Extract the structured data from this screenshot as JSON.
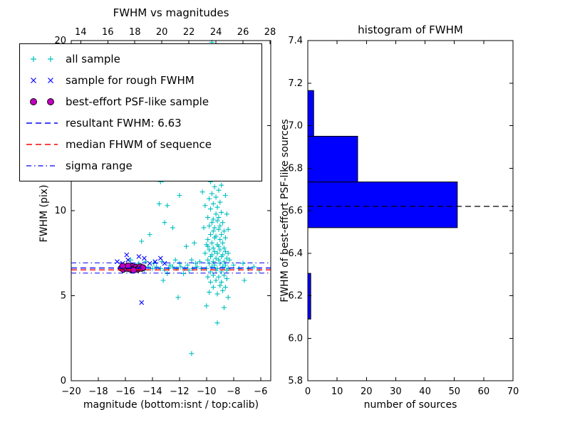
{
  "figure": {
    "background": "#ffffff"
  },
  "chart_data": [
    {
      "type": "scatter",
      "title": "FWHM vs magnitudes",
      "xlabel": "magnitude (bottom:isnt / top:calib)",
      "ylabel": "FWHM (pix)",
      "xlim": [
        -20,
        -5.25
      ],
      "ylim": [
        0,
        20
      ],
      "x_tick_values": [
        -20,
        -18,
        -16,
        -14,
        -12,
        -10,
        -8,
        -6
      ],
      "x_tick_labels": [
        "−20",
        "−18",
        "−16",
        "−14",
        "−12",
        "−10",
        "−8",
        "−6"
      ],
      "top_tick_values": [
        14,
        16,
        18,
        20,
        22,
        24,
        26,
        28
      ],
      "top_tick_labels": [
        "14",
        "16",
        "18",
        "20",
        "22",
        "24",
        "26",
        "28"
      ],
      "y_tick_values": [
        0,
        5,
        10,
        15,
        20
      ],
      "y_tick_labels": [
        "0",
        "5",
        "10",
        "15",
        "20"
      ],
      "series": [
        {
          "name": "all sample",
          "marker": "plus",
          "color": "#00bfbf",
          "points": [
            [
              -9.8,
              5.2
            ],
            [
              -9.2,
              5.1
            ],
            [
              -8.8,
              5.3
            ],
            [
              -9.5,
              5.5
            ],
            [
              -9.0,
              5.6
            ],
            [
              -8.6,
              5.5
            ],
            [
              -9.7,
              5.8
            ],
            [
              -9.3,
              5.9
            ],
            [
              -8.9,
              5.8
            ],
            [
              -8.5,
              6.0
            ],
            [
              -9.9,
              6.1
            ],
            [
              -9.5,
              6.2
            ],
            [
              -9.1,
              6.1
            ],
            [
              -8.7,
              6.2
            ],
            [
              -9.7,
              6.4
            ],
            [
              -9.3,
              6.5
            ],
            [
              -8.9,
              6.4
            ],
            [
              -8.5,
              6.5
            ],
            [
              -10.0,
              6.6
            ],
            [
              -9.6,
              6.7
            ],
            [
              -9.2,
              6.6
            ],
            [
              -8.8,
              6.7
            ],
            [
              -8.4,
              6.6
            ],
            [
              -9.8,
              6.9
            ],
            [
              -9.4,
              6.8
            ],
            [
              -9.0,
              6.9
            ],
            [
              -8.6,
              6.8
            ],
            [
              -9.9,
              7.1
            ],
            [
              -9.5,
              7.0
            ],
            [
              -9.1,
              7.1
            ],
            [
              -8.7,
              7.0
            ],
            [
              -8.3,
              7.1
            ],
            [
              -9.7,
              7.3
            ],
            [
              -9.3,
              7.2
            ],
            [
              -8.9,
              7.3
            ],
            [
              -8.5,
              7.2
            ],
            [
              -10.1,
              7.5
            ],
            [
              -9.6,
              7.4
            ],
            [
              -9.2,
              7.5
            ],
            [
              -8.8,
              7.4
            ],
            [
              -8.4,
              7.5
            ],
            [
              -9.8,
              7.7
            ],
            [
              -9.4,
              7.6
            ],
            [
              -9.0,
              7.7
            ],
            [
              -8.6,
              7.6
            ],
            [
              -9.9,
              7.9
            ],
            [
              -9.5,
              7.8
            ],
            [
              -9.1,
              7.9
            ],
            [
              -8.7,
              7.8
            ],
            [
              -9.6,
              8.1
            ],
            [
              -9.2,
              8.0
            ],
            [
              -8.8,
              8.1
            ],
            [
              -9.9,
              8.3
            ],
            [
              -9.4,
              8.4
            ],
            [
              -9.0,
              8.3
            ],
            [
              -8.6,
              8.4
            ],
            [
              -9.7,
              8.6
            ],
            [
              -9.3,
              8.5
            ],
            [
              -8.9,
              8.6
            ],
            [
              -9.5,
              8.8
            ],
            [
              -9.1,
              8.9
            ],
            [
              -8.7,
              8.8
            ],
            [
              -9.8,
              9.1
            ],
            [
              -9.4,
              9.0
            ],
            [
              -9.0,
              9.1
            ],
            [
              -9.6,
              9.3
            ],
            [
              -9.2,
              9.4
            ],
            [
              -8.8,
              9.3
            ],
            [
              -9.9,
              9.6
            ],
            [
              -9.5,
              9.5
            ],
            [
              -9.1,
              9.6
            ],
            [
              -9.3,
              9.8
            ],
            [
              -8.9,
              9.9
            ],
            [
              -9.7,
              10.1
            ],
            [
              -9.2,
              10.2
            ],
            [
              -9.5,
              10.4
            ],
            [
              -9.0,
              10.5
            ],
            [
              -9.8,
              10.7
            ],
            [
              -9.3,
              10.8
            ],
            [
              -9.6,
              11.0
            ],
            [
              -9.1,
              11.2
            ],
            [
              -9.4,
              11.4
            ],
            [
              -8.9,
              11.5
            ],
            [
              -9.7,
              11.7
            ],
            [
              -9.2,
              11.9
            ],
            [
              -9.5,
              12.1
            ],
            [
              -9.0,
              12.3
            ],
            [
              -9.3,
              12.6
            ],
            [
              -9.6,
              12.9
            ],
            [
              -9.1,
              13.2
            ],
            [
              -9.4,
              13.6
            ],
            [
              -8.8,
              12.0
            ],
            [
              -8.6,
              10.9
            ],
            [
              -8.5,
              9.8
            ],
            [
              -10.2,
              9.0
            ],
            [
              -10.0,
              8.0
            ],
            [
              -10.1,
              10.3
            ],
            [
              -10.3,
              11.1
            ],
            [
              -8.4,
              8.9
            ],
            [
              -10.2,
              12.4
            ],
            [
              -8.7,
              13.0
            ],
            [
              -16.4,
              6.6
            ],
            [
              -16.1,
              6.7
            ],
            [
              -15.8,
              6.5
            ],
            [
              -15.5,
              6.6
            ],
            [
              -15.2,
              6.7
            ],
            [
              -14.9,
              6.6
            ],
            [
              -14.6,
              6.5
            ],
            [
              -14.3,
              6.7
            ],
            [
              -14.0,
              6.6
            ],
            [
              -13.7,
              6.7
            ],
            [
              -13.4,
              6.6
            ],
            [
              -13.1,
              6.5
            ],
            [
              -12.8,
              6.6
            ],
            [
              -12.5,
              6.7
            ],
            [
              -12.2,
              6.6
            ],
            [
              -11.9,
              6.7
            ],
            [
              -11.6,
              6.6
            ],
            [
              -11.3,
              6.5
            ],
            [
              -11.0,
              6.6
            ],
            [
              -10.7,
              6.7
            ],
            [
              -10.4,
              6.6
            ],
            [
              -12.0,
              6.9
            ],
            [
              -12.7,
              6.8
            ],
            [
              -13.9,
              6.9
            ],
            [
              -15.0,
              6.9
            ],
            [
              -11.4,
              6.8
            ],
            [
              -10.8,
              6.9
            ],
            [
              -13.3,
              7.0
            ],
            [
              -14.5,
              7.0
            ],
            [
              -12.3,
              7.1
            ],
            [
              -10.5,
              7.0
            ],
            [
              -15.6,
              7.1
            ],
            [
              -11.1,
              7.1
            ],
            [
              -12.9,
              6.3
            ],
            [
              -11.7,
              6.3
            ],
            [
              -8.0,
              6.8
            ],
            [
              -7.6,
              6.6
            ],
            [
              -7.3,
              6.9
            ],
            [
              -6.9,
              6.6
            ],
            [
              -6.5,
              6.7
            ],
            [
              -6.1,
              6.5
            ],
            [
              -13.2,
              11.8
            ],
            [
              -13.4,
              11.7
            ],
            [
              -13.1,
              9.3
            ],
            [
              -12.6,
              12.1
            ],
            [
              -12.5,
              9.0
            ],
            [
              -14.8,
              8.2
            ],
            [
              -14.2,
              8.6
            ],
            [
              -12.9,
              10.3
            ],
            [
              -12.0,
              10.9
            ],
            [
              -13.5,
              10.4
            ],
            [
              -11.5,
              7.9
            ],
            [
              -10.9,
              8.1
            ],
            [
              -9.6,
              19.9
            ],
            [
              -9.3,
              19.4
            ],
            [
              -9.8,
              19.0
            ],
            [
              -10.4,
              16.4
            ],
            [
              -10.0,
              15.1
            ],
            [
              -9.7,
              14.6
            ],
            [
              -10.6,
              14.0
            ],
            [
              -11.1,
              1.6
            ],
            [
              -9.2,
              3.4
            ],
            [
              -10.0,
              4.4
            ],
            [
              -8.4,
              4.9
            ],
            [
              -13.2,
              5.9
            ],
            [
              -7.2,
              5.9
            ],
            [
              -12.1,
              4.9
            ],
            [
              -8.7,
              4.3
            ]
          ]
        },
        {
          "name": "sample for rough FWHM",
          "marker": "x",
          "color": "#0000ff",
          "points": [
            [
              -16.6,
              7.0
            ],
            [
              -16.2,
              6.9
            ],
            [
              -15.8,
              7.1
            ],
            [
              -15.4,
              6.8
            ],
            [
              -15.0,
              7.3
            ],
            [
              -14.6,
              7.2
            ],
            [
              -14.2,
              6.9
            ],
            [
              -13.8,
              7.0
            ],
            [
              -13.4,
              7.2
            ],
            [
              -13.1,
              6.9
            ],
            [
              -15.9,
              7.4
            ],
            [
              -14.8,
              4.6
            ]
          ]
        },
        {
          "name": "best-effort PSF-like sample",
          "marker": "circle",
          "color": "#bf00bf",
          "edge": "#000000",
          "points": [
            [
              -16.3,
              6.62
            ],
            [
              -16.15,
              6.55
            ],
            [
              -16.0,
              6.7
            ],
            [
              -15.9,
              6.6
            ],
            [
              -15.75,
              6.65
            ],
            [
              -15.6,
              6.55
            ],
            [
              -15.5,
              6.72
            ],
            [
              -15.35,
              6.6
            ],
            [
              -15.2,
              6.68
            ],
            [
              -15.1,
              6.55
            ],
            [
              -15.0,
              6.62
            ],
            [
              -14.9,
              6.7
            ],
            [
              -14.8,
              6.6
            ],
            [
              -14.7,
              6.65
            ],
            [
              -15.4,
              6.5
            ],
            [
              -15.8,
              6.75
            ],
            [
              -16.2,
              6.74
            ]
          ]
        }
      ],
      "hlines": [
        {
          "name": "resultant FWHM",
          "y": 6.63,
          "color": "#0000ff",
          "style": "dashed"
        },
        {
          "name": "median FWHM of sequence",
          "y": 6.52,
          "color": "#ff0000",
          "style": "dashed"
        },
        {
          "name": "sigma range upper",
          "y": 6.93,
          "color": "#0000ff",
          "style": "dashdot"
        },
        {
          "name": "sigma range lower",
          "y": 6.33,
          "color": "#0000ff",
          "style": "dashdot"
        }
      ],
      "resultant_fwhm": 6.63,
      "legend": {
        "items": [
          {
            "marker": "plus",
            "color": "#00bfbf",
            "label": "all sample"
          },
          {
            "marker": "x",
            "color": "#0000ff",
            "label": "sample for rough FWHM"
          },
          {
            "marker": "circle",
            "color": "#bf00bf",
            "label": "best-effort PSF-like sample"
          },
          {
            "marker": "dashed",
            "color": "#0000ff",
            "label": "resultant FWHM: 6.63"
          },
          {
            "marker": "dashed",
            "color": "#ff0000",
            "label": "median FHWM of sequence"
          },
          {
            "marker": "dashdot",
            "color": "#0000ff",
            "label": "sigma range"
          }
        ]
      }
    },
    {
      "type": "bar-horizontal",
      "title": "histogram of FWHM",
      "xlabel": "number of sources",
      "ylabel": "FWHM of best-effort PSF-like sources",
      "xlim": [
        0,
        70
      ],
      "ylim": [
        5.8,
        7.4
      ],
      "x_tick_values": [
        0,
        10,
        20,
        30,
        40,
        50,
        60,
        70
      ],
      "x_tick_labels": [
        "0",
        "10",
        "20",
        "30",
        "40",
        "50",
        "60",
        "70"
      ],
      "y_tick_values": [
        5.8,
        6.0,
        6.2,
        6.4,
        6.6,
        6.8,
        7.0,
        7.2,
        7.4
      ],
      "y_tick_labels": [
        "5.8",
        "6.0",
        "6.2",
        "6.4",
        "6.6",
        "6.8",
        "7.0",
        "7.2",
        "7.4"
      ],
      "bar_color": "#0000ff",
      "bars": [
        {
          "y0": 6.09,
          "y1": 6.305,
          "count": 1
        },
        {
          "y0": 6.305,
          "y1": 6.52,
          "count": 0
        },
        {
          "y0": 6.52,
          "y1": 6.735,
          "count": 51
        },
        {
          "y0": 6.735,
          "y1": 6.95,
          "count": 17
        },
        {
          "y0": 6.95,
          "y1": 7.165,
          "count": 2
        }
      ],
      "hline": {
        "y": 6.62,
        "color": "#000000",
        "style": "dashed"
      }
    }
  ]
}
